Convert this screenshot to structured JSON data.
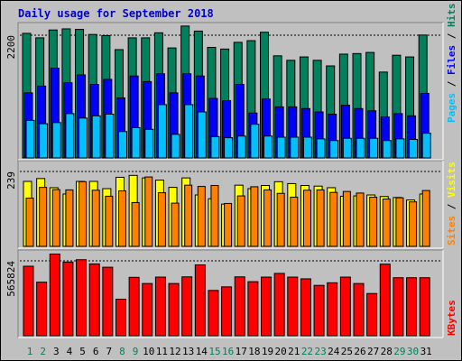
{
  "title": "Daily usage for September 2018",
  "colors": {
    "background": "#c0c0c0",
    "hits": "#00805c",
    "files": "#0000ff",
    "pages": "#00c0ff",
    "visits": "#ffff00",
    "sites": "#ff8000",
    "kbytes": "#ff0000",
    "weekday_label": "#000000",
    "weekend_label": "#00805c"
  },
  "side_labels": {
    "pages": "Pages",
    "files": "Files",
    "hits": "Hits",
    "sites": "Sites",
    "visits": "Visits",
    "kbytes": "KBytes",
    "separator": " / "
  },
  "chart_data": [
    {
      "type": "bar",
      "panel": "hits-files-pages",
      "y_max_label": "2200",
      "ylim": [
        0,
        2380
      ],
      "categories": [
        "1",
        "2",
        "3",
        "4",
        "5",
        "6",
        "7",
        "8",
        "9",
        "10",
        "11",
        "12",
        "13",
        "14",
        "15",
        "16",
        "17",
        "18",
        "19",
        "20",
        "21",
        "22",
        "23",
        "24",
        "25",
        "26",
        "27",
        "28",
        "29",
        "30",
        "31"
      ],
      "series": [
        {
          "name": "Hits",
          "values": [
            2220,
            2140,
            2280,
            2300,
            2290,
            2200,
            2180,
            1930,
            2140,
            2140,
            2230,
            1960,
            2350,
            2260,
            1970,
            1940,
            2060,
            2090,
            2240,
            1820,
            1740,
            1800,
            1740,
            1640,
            1850,
            1860,
            1880,
            1530,
            1830,
            1800,
            2190
          ]
        },
        {
          "name": "Files",
          "values": [
            1160,
            1280,
            1600,
            1340,
            1480,
            1310,
            1400,
            1070,
            1460,
            1360,
            1500,
            1160,
            1500,
            1460,
            1060,
            1020,
            1310,
            800,
            1050,
            910,
            910,
            880,
            820,
            780,
            940,
            880,
            840,
            730,
            790,
            750,
            1150
          ]
        },
        {
          "name": "Pages",
          "values": [
            670,
            610,
            630,
            790,
            710,
            750,
            780,
            470,
            540,
            510,
            950,
            420,
            950,
            820,
            380,
            360,
            390,
            600,
            390,
            370,
            370,
            370,
            340,
            310,
            350,
            350,
            350,
            310,
            340,
            330,
            440
          ]
        }
      ]
    },
    {
      "type": "bar",
      "panel": "visits-sites",
      "y_max_label": "239",
      "ylim": [
        0,
        266
      ],
      "categories": [
        "1",
        "2",
        "3",
        "4",
        "5",
        "6",
        "7",
        "8",
        "9",
        "10",
        "11",
        "12",
        "13",
        "14",
        "15",
        "16",
        "17",
        "18",
        "19",
        "20",
        "21",
        "22",
        "23",
        "24",
        "25",
        "26",
        "27",
        "28",
        "29",
        "30",
        "31"
      ],
      "series": [
        {
          "name": "Visits",
          "values": [
            206,
            215,
            186,
            166,
            206,
            206,
            183,
            219,
            225,
            217,
            210,
            187,
            217,
            163,
            151,
            134,
            194,
            183,
            193,
            205,
            199,
            193,
            191,
            186,
            159,
            160,
            163,
            158,
            155,
            147,
            166
          ]
        },
        {
          "name": "Sites",
          "values": [
            153,
            187,
            180,
            179,
            205,
            178,
            159,
            176,
            139,
            220,
            170,
            137,
            194,
            190,
            193,
            136,
            160,
            189,
            179,
            168,
            156,
            178,
            179,
            171,
            174,
            169,
            156,
            150,
            154,
            141,
            177
          ]
        }
      ]
    },
    {
      "type": "bar",
      "panel": "kbytes",
      "y_max_label": "565824",
      "ylim": [
        0,
        680000
      ],
      "categories": [
        "1",
        "2",
        "3",
        "4",
        "5",
        "6",
        "7",
        "8",
        "9",
        "10",
        "11",
        "12",
        "13",
        "14",
        "15",
        "16",
        "17",
        "18",
        "19",
        "20",
        "21",
        "22",
        "23",
        "24",
        "25",
        "26",
        "27",
        "28",
        "29",
        "30",
        "31"
      ],
      "series": [
        {
          "name": "KBytes",
          "values": [
            563000,
            434000,
            662000,
            597000,
            616000,
            582000,
            555000,
            296000,
            473000,
            423000,
            475000,
            423000,
            477000,
            574000,
            367000,
            396000,
            477000,
            438000,
            475000,
            505000,
            475000,
            461000,
            408000,
            429000,
            475000,
            423000,
            342000,
            580000,
            470000,
            470000,
            470000
          ]
        }
      ]
    }
  ],
  "weekend_days": [
    "1",
    "2",
    "8",
    "9",
    "15",
    "16",
    "22",
    "23",
    "29",
    "30"
  ]
}
